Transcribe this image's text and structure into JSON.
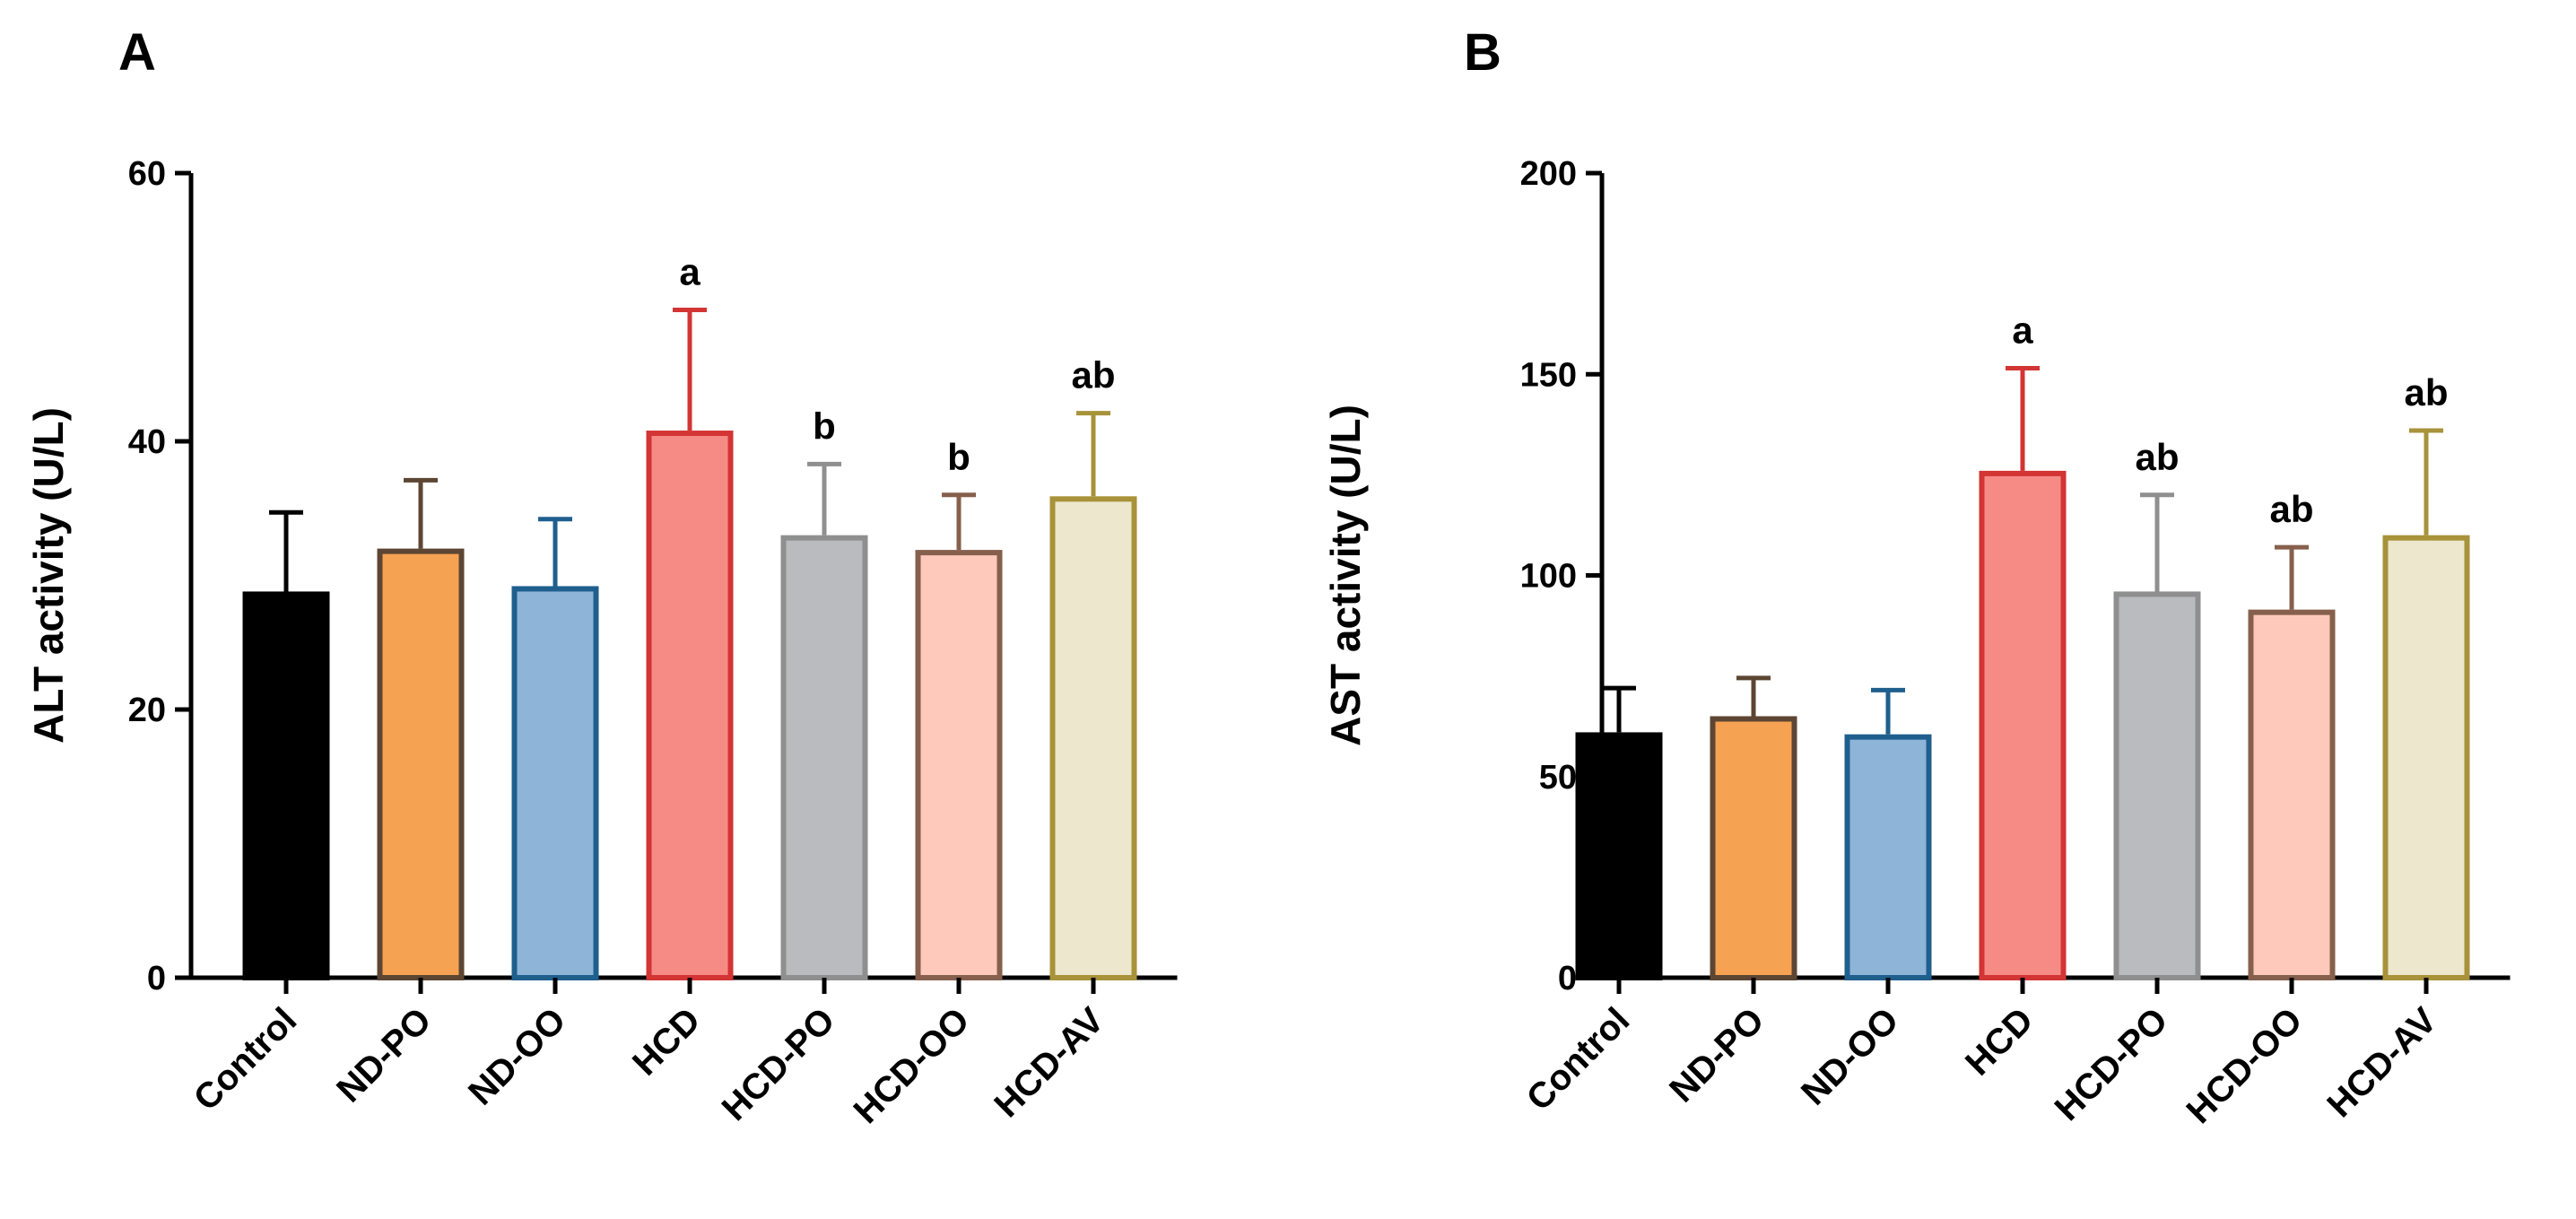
{
  "chart_data": [
    {
      "type": "bar",
      "panel_label": "A",
      "title": "",
      "xlabel": "",
      "ylabel": "ALT activity (U/L)",
      "ylim": [
        0,
        60
      ],
      "yticks": [
        0,
        20,
        40,
        60
      ],
      "categories": [
        "Control",
        "ND-PO",
        "ND-OO",
        "HCD",
        "HCD-PO",
        "HCD-OO",
        "HCD-AV"
      ],
      "values": [
        28.8,
        32,
        29.2,
        40.8,
        33,
        31.9,
        35.9
      ],
      "errors": [
        5.9,
        5.1,
        5.0,
        9.0,
        5.3,
        4.1,
        6.2
      ],
      "significance": [
        "",
        "",
        "",
        "a",
        "b",
        "b",
        "ab"
      ],
      "fill_colors": [
        "#000000",
        "#f6a253",
        "#8eb4d8",
        "#f68b86",
        "#b9bbbe",
        "#fec9bb",
        "#ece7cd"
      ],
      "edge_colors": [
        "#000000",
        "#5c4633",
        "#1f5f8e",
        "#d33434",
        "#8f8f8f",
        "#86604c",
        "#a8923a"
      ],
      "grid": false,
      "legend": "none"
    },
    {
      "type": "bar",
      "panel_label": "B",
      "title": "",
      "xlabel": "",
      "ylabel": "AST activity (U/L)",
      "ylim": [
        0,
        200
      ],
      "yticks": [
        0,
        50,
        100,
        150,
        200
      ],
      "categories": [
        "Control",
        "ND-PO",
        "ND-OO",
        "HCD",
        "HCD-PO",
        "HCD-OO",
        "HCD-AV"
      ],
      "values": [
        61,
        65,
        60.5,
        126,
        96,
        91.5,
        110
      ],
      "errors": [
        11,
        9.5,
        11,
        25.5,
        24,
        15.5,
        26
      ],
      "significance": [
        "",
        "",
        "",
        "a",
        "ab",
        "ab",
        "ab"
      ],
      "fill_colors": [
        "#000000",
        "#f6a253",
        "#8eb4d8",
        "#f68b86",
        "#b9bbbe",
        "#fec9bb",
        "#ece7cd"
      ],
      "edge_colors": [
        "#000000",
        "#5c4633",
        "#1f5f8e",
        "#d33434",
        "#8f8f8f",
        "#86604c",
        "#a8923a"
      ],
      "grid": false,
      "legend": "none"
    }
  ]
}
